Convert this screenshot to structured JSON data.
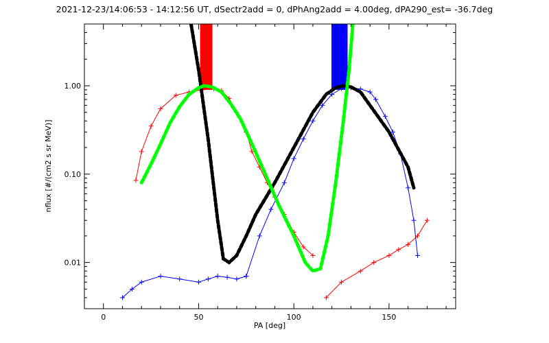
{
  "chart_data": {
    "type": "line",
    "title": "2021-12-23/14:06:53 - 14:12:56 UT, dSectr2add = 0, dPhAng2add = 4.00deg, dPA290_est= -36.7deg",
    "xlabel": "PA [deg]",
    "ylabel": "nflux [#/(cm2 s sr MeV)]",
    "xlim": [
      -10,
      185
    ],
    "ylim": [
      0.003,
      5.0
    ],
    "yscale": "log",
    "x_ticks": [
      0,
      50,
      100,
      150
    ],
    "x_tick_labels": [
      "0",
      "50",
      "100",
      "150"
    ],
    "y_ticks": [
      0.01,
      0.1,
      1.0
    ],
    "y_tick_labels": [
      "0.01",
      "0.10",
      "1.00"
    ],
    "grid": false,
    "colors": {
      "red_series": "#ff0000",
      "blue_series": "#0000ff",
      "black_fit": "#000000",
      "green_fit": "#00ff00",
      "axes": "#000000"
    },
    "series": [
      {
        "color": "red",
        "marker": "+",
        "x": [
          17,
          20,
          25,
          30,
          38,
          45,
          52,
          58,
          62,
          66,
          70,
          75,
          78,
          82,
          86,
          90,
          95,
          100,
          105,
          110
        ],
        "values": [
          0.085,
          0.18,
          0.35,
          0.55,
          0.78,
          0.85,
          0.9,
          0.92,
          0.88,
          0.72,
          0.5,
          0.3,
          0.18,
          0.12,
          0.08,
          0.055,
          0.035,
          0.022,
          0.015,
          0.012
        ]
      },
      {
        "color": "red",
        "marker": "+",
        "x": [
          117,
          125,
          135,
          142,
          150,
          155,
          160,
          165,
          170
        ],
        "values": [
          0.004,
          0.006,
          0.008,
          0.01,
          0.012,
          0.014,
          0.016,
          0.02,
          0.03
        ]
      },
      {
        "color": "blue",
        "marker": "+",
        "x": [
          10,
          15,
          20,
          30,
          40,
          50,
          55,
          60,
          65,
          70,
          75
        ],
        "values": [
          0.004,
          0.005,
          0.006,
          0.007,
          0.0065,
          0.006,
          0.0065,
          0.007,
          0.0068,
          0.0065,
          0.007
        ]
      },
      {
        "color": "blue",
        "marker": "+",
        "x": [
          75,
          82,
          88,
          95,
          100,
          105,
          110,
          115,
          120,
          125,
          130,
          135,
          140,
          143,
          148,
          152,
          156,
          160,
          163,
          165
        ],
        "values": [
          0.007,
          0.02,
          0.04,
          0.08,
          0.15,
          0.25,
          0.4,
          0.6,
          0.8,
          0.93,
          0.95,
          0.92,
          0.85,
          0.7,
          0.45,
          0.3,
          0.17,
          0.07,
          0.03,
          0.012
        ]
      },
      {
        "color": "black",
        "style": "dashed-thick",
        "x": [
          46,
          50,
          55,
          60,
          63,
          66,
          70,
          75,
          80,
          90,
          100,
          110,
          117,
          122,
          126,
          130,
          135,
          140,
          150,
          160,
          163
        ],
        "values": [
          5.0,
          1.5,
          0.25,
          0.03,
          0.011,
          0.01,
          0.012,
          0.02,
          0.035,
          0.08,
          0.2,
          0.5,
          0.8,
          0.95,
          1.0,
          0.97,
          0.85,
          0.6,
          0.3,
          0.12,
          0.07
        ]
      },
      {
        "color": "green",
        "style": "dashed-thick",
        "x": [
          20,
          25,
          30,
          35,
          40,
          45,
          50,
          53,
          57,
          62,
          67,
          72,
          78,
          85,
          92,
          100,
          106,
          110,
          114,
          118,
          122,
          126,
          129,
          131
        ],
        "values": [
          0.08,
          0.13,
          0.22,
          0.38,
          0.58,
          0.8,
          0.95,
          1.0,
          0.97,
          0.85,
          0.62,
          0.42,
          0.22,
          0.1,
          0.045,
          0.02,
          0.01,
          0.008,
          0.0085,
          0.02,
          0.08,
          0.4,
          1.5,
          5.0
        ]
      }
    ],
    "spike_bands": [
      {
        "color": "red",
        "x_from": 51,
        "x_to": 57,
        "from_value": 0.9,
        "to_value": 5.0
      },
      {
        "color": "blue",
        "x_from": 120,
        "x_to": 128,
        "from_value": 0.9,
        "to_value": 5.0
      }
    ]
  }
}
